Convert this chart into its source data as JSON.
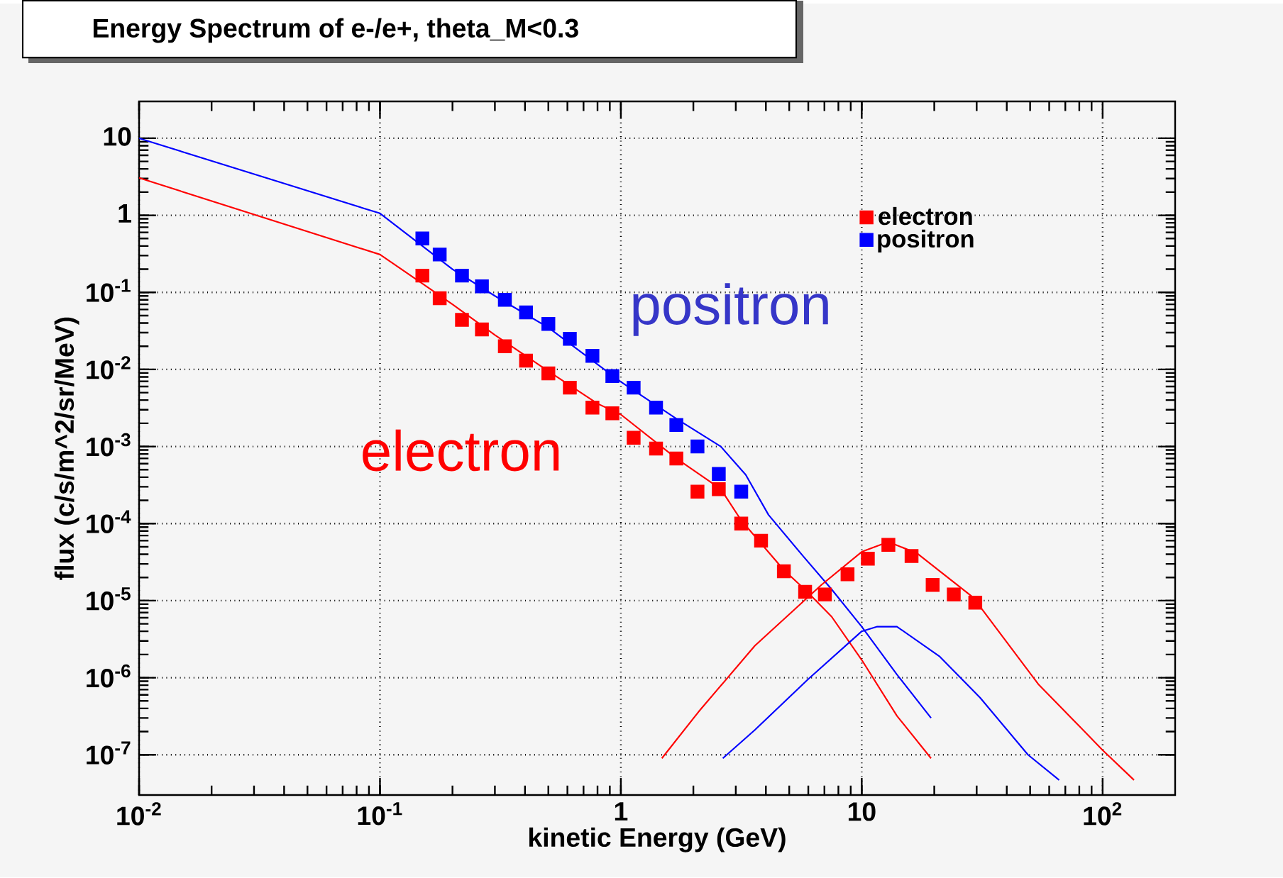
{
  "chart_data": {
    "type": "scatter",
    "title": "Energy Spectrum of e-/e+, theta_M<0.3",
    "xlabel": "kinetic Energy (GeV)",
    "ylabel": "flux (c/s/m^2/sr/MeV)",
    "log": "xy",
    "grid": true,
    "legend": "top right",
    "marker": "square",
    "xlim": [
      0.01,
      200
    ],
    "ylim": [
      3e-08,
      30
    ],
    "xticks": [
      {
        "value": 0.01,
        "label": "10$^{-2}$"
      },
      {
        "value": 0.1,
        "label": "10$^{-1}$"
      },
      {
        "value": 1,
        "label": "1"
      },
      {
        "value": 10,
        "label": "10"
      },
      {
        "value": 100,
        "label": "10$^{2}$"
      }
    ],
    "yticks": [
      {
        "value": 1e-07,
        "label": "10$^{-7}$"
      },
      {
        "value": 1e-06,
        "label": "10$^{-6}$"
      },
      {
        "value": 1e-05,
        "label": "10$^{-5}$"
      },
      {
        "value": 0.0001,
        "label": "10$^{-4}$"
      },
      {
        "value": 0.001,
        "label": "10$^{-3}$"
      },
      {
        "value": 0.01,
        "label": "10$^{-2}$"
      },
      {
        "value": 0.1,
        "label": "10$^{-1}$"
      },
      {
        "value": 1,
        "label": "1"
      },
      {
        "value": 10,
        "label": "10"
      }
    ],
    "annotations": [
      "positron",
      "electron"
    ],
    "series": [
      {
        "name": "electron",
        "color": "#ff0000",
        "x": [
          0.15,
          0.177,
          0.219,
          0.265,
          0.33,
          0.404,
          0.5,
          0.614,
          0.762,
          0.922,
          1.13,
          1.4,
          1.7,
          2.08,
          2.55,
          3.16,
          3.82,
          4.75,
          5.82,
          7.03,
          8.73,
          10.6,
          12.9,
          16.1,
          19.7,
          24.1,
          29.6
        ],
        "values": [
          0.165,
          0.084,
          0.044,
          0.033,
          0.02,
          0.013,
          0.0089,
          0.0058,
          0.0032,
          0.0027,
          0.0013,
          0.00094,
          0.0007,
          0.00026,
          0.00028,
          0.0001,
          6e-05,
          2.4e-05,
          1.3e-05,
          1.2e-05,
          2.2e-05,
          3.5e-05,
          5.3e-05,
          3.8e-05,
          1.6e-05,
          1.2e-05,
          9.4e-06
        ]
      },
      {
        "name": "positron",
        "color": "#0000ff",
        "x": [
          0.15,
          0.177,
          0.219,
          0.265,
          0.33,
          0.404,
          0.5,
          0.614,
          0.762,
          0.922,
          1.13,
          1.4,
          1.7,
          2.08,
          2.55,
          3.16
        ],
        "values": [
          0.5,
          0.31,
          0.165,
          0.12,
          0.08,
          0.055,
          0.039,
          0.025,
          0.015,
          0.0082,
          0.0058,
          0.0032,
          0.0019,
          0.001,
          0.00044,
          0.00026
        ]
      },
      {
        "type": "line",
        "marker": "none",
        "color": "#ff0000",
        "x": [
          0.01,
          0.1,
          0.15,
          0.2,
          0.3,
          0.5,
          0.8,
          1,
          1.7,
          2.6,
          3.16,
          4.75,
          5.8,
          7.5,
          10,
          14,
          19.4
        ],
        "values": [
          3.06,
          0.31,
          0.13,
          0.07,
          0.028,
          0.0095,
          0.0036,
          0.0026,
          0.0007,
          0.00028,
          0.00011,
          2.5e-05,
          1.4e-05,
          6.2e-06,
          1.7e-06,
          3.2e-07,
          9e-08
        ]
      },
      {
        "type": "line",
        "marker": "none",
        "color": "#0000ff",
        "x": [
          0.01,
          0.1,
          0.15,
          0.2,
          0.3,
          0.5,
          1,
          1.7,
          2.6,
          3.3,
          4.1,
          5.7,
          7.5,
          10,
          14,
          19.4
        ],
        "values": [
          10,
          1.06,
          0.4,
          0.2,
          0.09,
          0.035,
          0.0069,
          0.0023,
          0.001,
          0.00043,
          0.00013,
          3.8e-05,
          1.4e-05,
          4.6e-06,
          1.1e-06,
          3e-07
        ]
      },
      {
        "type": "line",
        "marker": "none",
        "color": "#ff0000",
        "x": [
          1.48,
          2.1,
          3.6,
          6.8,
          10,
          12.9,
          17,
          29,
          54,
          100,
          135
        ],
        "values": [
          9e-08,
          3.6e-07,
          2.6e-06,
          1.6e-05,
          4.3e-05,
          5.8e-05,
          4.1e-05,
          1.1e-05,
          8.3e-07,
          1.15e-07,
          4.7e-08
        ]
      },
      {
        "type": "line",
        "marker": "none",
        "color": "#0000ff",
        "x": [
          2.65,
          3.6,
          6.0,
          10,
          11.6,
          14,
          21,
          31,
          49,
          66
        ],
        "values": [
          9e-08,
          2.1e-07,
          9.6e-07,
          4e-06,
          4.6e-06,
          4.6e-06,
          1.9e-06,
          5.5e-07,
          1e-07,
          4.7e-08
        ]
      }
    ]
  }
}
